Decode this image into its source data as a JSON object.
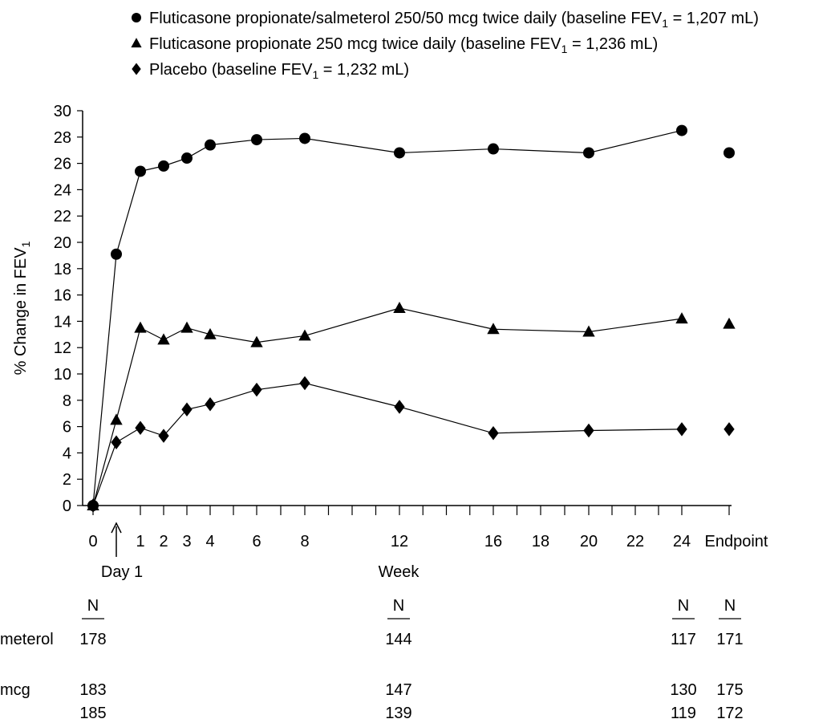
{
  "chart_data": {
    "type": "line",
    "ylabel": "% Change in FEV",
    "ylabel_sub": "1",
    "xlabel": "Week",
    "ylim": [
      0,
      30
    ],
    "yticks": [
      0,
      2,
      4,
      6,
      8,
      10,
      12,
      14,
      16,
      18,
      20,
      22,
      24,
      26,
      28,
      30
    ],
    "xticks": [
      0,
      1,
      2,
      3,
      4,
      6,
      8,
      12,
      16,
      18,
      20,
      22,
      24
    ],
    "x_endpoint_label": "Endpoint",
    "day1_label": "Day 1",
    "legend_position": "top",
    "series": [
      {
        "name": "Fluticasone propionate/salmeterol 250/50 mcg twice daily (baseline FEV",
        "name_sub": "1",
        "name_suffix": " = 1,207 mL)",
        "marker": "circle",
        "x": [
          0,
          "Day 1",
          1,
          2,
          3,
          4,
          6,
          8,
          12,
          16,
          20,
          24
        ],
        "values": [
          0,
          19.1,
          25.4,
          25.8,
          26.4,
          27.4,
          27.8,
          27.9,
          26.8,
          27.1,
          26.8,
          28.5
        ],
        "endpoint": 26.8
      },
      {
        "name": "Fluticasone propionate 250 mcg twice daily (baseline FEV",
        "name_sub": "1",
        "name_suffix": " = 1,236 mL)",
        "marker": "triangle",
        "x": [
          0,
          "Day 1",
          1,
          2,
          3,
          4,
          6,
          8,
          12,
          16,
          20,
          24
        ],
        "values": [
          0,
          6.5,
          13.5,
          12.6,
          13.5,
          13.0,
          12.4,
          12.9,
          15.0,
          13.4,
          13.2,
          14.2
        ],
        "endpoint": 13.8
      },
      {
        "name": "Placebo (baseline FEV",
        "name_sub": "1",
        "name_suffix": " = 1,232 mL)",
        "marker": "diamond",
        "x": [
          0,
          "Day 1",
          1,
          2,
          3,
          4,
          6,
          8,
          12,
          16,
          20,
          24
        ],
        "values": [
          0,
          4.8,
          5.9,
          5.3,
          7.3,
          7.7,
          8.8,
          9.3,
          7.5,
          5.5,
          5.7,
          5.8
        ],
        "endpoint": 5.8
      }
    ],
    "n_table": {
      "header": "N",
      "row_labels": [
        "meterol",
        "mcg",
        ""
      ],
      "columns": [
        {
          "at": "0",
          "values": [
            "178",
            "183",
            "185"
          ]
        },
        {
          "at": "12",
          "values": [
            "144",
            "147",
            "139"
          ]
        },
        {
          "at": "24",
          "values": [
            "117",
            "130",
            "119"
          ]
        },
        {
          "at": "Endpoint",
          "values": [
            "171",
            "175",
            "172"
          ]
        }
      ]
    }
  }
}
